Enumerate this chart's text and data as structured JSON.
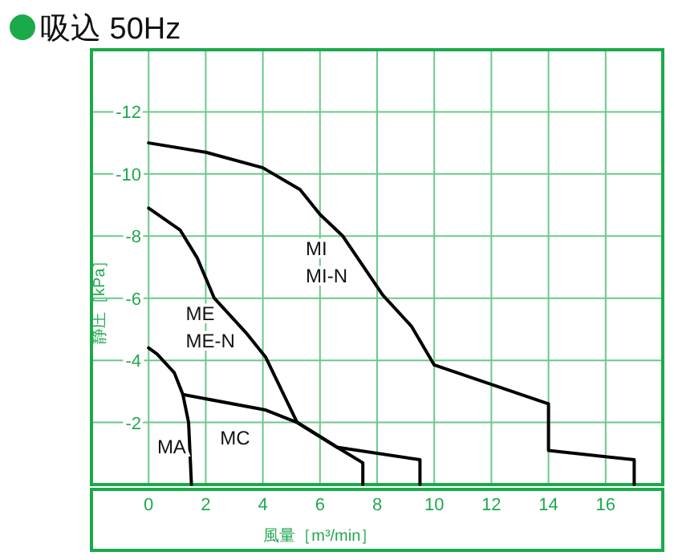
{
  "chart_data": {
    "type": "line",
    "title": "吸込 50Hz",
    "xlabel": "風量［m³/min］",
    "ylabel": "静圧［kPa］",
    "xlim": [
      -2,
      18
    ],
    "ylim": [
      0,
      -14
    ],
    "xticks": [
      0,
      2,
      4,
      6,
      8,
      10,
      12,
      14,
      16
    ],
    "yticks": [
      -2,
      -4,
      -6,
      -8,
      -10,
      -12
    ],
    "grid": true,
    "series": [
      {
        "name": "MA",
        "color": "#000000",
        "x": [
          0,
          0.3,
          0.9,
          1.2,
          1.4,
          1.5
        ],
        "values": [
          -4.4,
          -4.2,
          -3.6,
          -2.9,
          -2.0,
          0
        ]
      },
      {
        "name": "MC",
        "color": "#000000",
        "x": [
          1.2,
          4.1,
          5.2,
          6.6,
          7.5,
          7.5
        ],
        "values": [
          -2.9,
          -2.4,
          -2.0,
          -1.2,
          -0.7,
          0
        ]
      },
      {
        "name": "ME\nME-N",
        "color": "#000000",
        "x": [
          0,
          1.1,
          1.7,
          2.3,
          3.4,
          4.1,
          5.2,
          6.6,
          9.5,
          9.5
        ],
        "values": [
          -8.9,
          -8.2,
          -7.3,
          -6.0,
          -4.9,
          -4.1,
          -2.0,
          -1.2,
          -0.8,
          0
        ]
      },
      {
        "name": "MI\nMI-N",
        "color": "#000000",
        "x": [
          0,
          2,
          4,
          5.3,
          6.0,
          6.8,
          8.2,
          9.2,
          10.0,
          14.0,
          14.0,
          17.0,
          17.0
        ],
        "values": [
          -11.0,
          -10.7,
          -10.2,
          -9.5,
          -8.7,
          -8.0,
          -6.1,
          -5.1,
          -3.85,
          -2.6,
          -1.1,
          -0.8,
          0
        ]
      }
    ]
  }
}
